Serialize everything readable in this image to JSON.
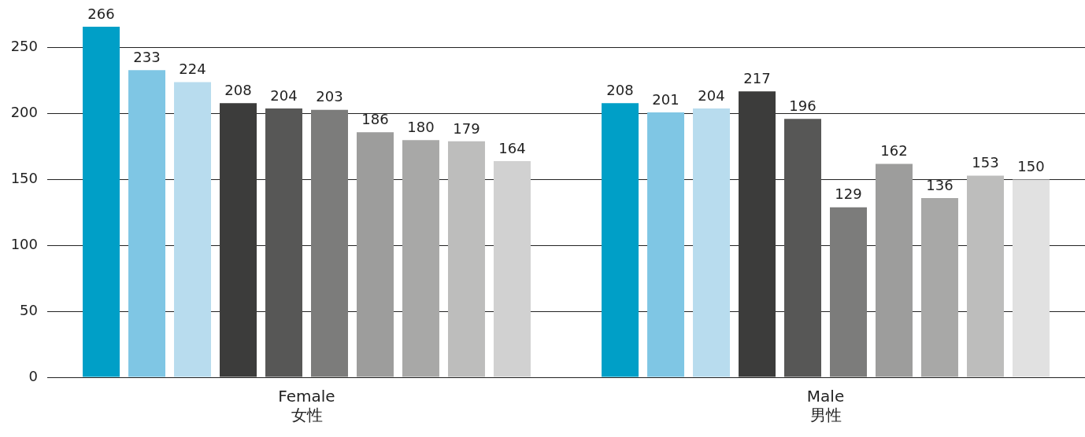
{
  "chart_data": {
    "type": "bar",
    "categories": [
      "Female\n女性",
      "Male\n男性"
    ],
    "series": [
      {
        "color": "#009fc7",
        "values": [
          266,
          208
        ]
      },
      {
        "color": "#7fc6e4",
        "values": [
          233,
          201
        ]
      },
      {
        "color": "#b8dcee",
        "values": [
          224,
          204
        ]
      },
      {
        "color": "#3c3c3b",
        "values": [
          208,
          217
        ]
      },
      {
        "color": "#575756",
        "values": [
          204,
          196
        ]
      },
      {
        "color": "#7c7c7b",
        "values": [
          203,
          129
        ]
      },
      {
        "color": "#9d9d9c",
        "values": [
          186,
          162
        ]
      },
      {
        "color": "#a8a8a7",
        "values": [
          180,
          136
        ]
      },
      {
        "color": "#bdbdbc",
        "values": [
          179,
          153
        ]
      },
      {
        "colors": [
          "#d1d1d1",
          "#e1e1e1"
        ],
        "values": [
          164,
          150
        ]
      }
    ],
    "ylim": [
      0,
      266
    ],
    "yticks": [
      0,
      50,
      100,
      150,
      200,
      250
    ],
    "grid": "y",
    "data_labels": true,
    "legend": false
  }
}
